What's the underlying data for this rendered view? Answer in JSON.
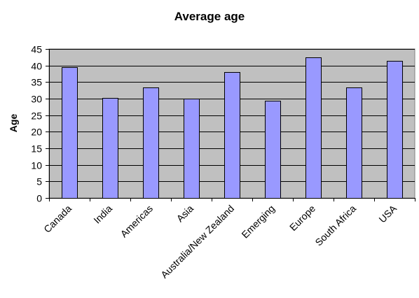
{
  "chart_data": {
    "type": "bar",
    "title": "Average age",
    "xlabel": "",
    "ylabel": "Age",
    "categories": [
      "Canada",
      "India",
      "Americas",
      "Asia",
      "Australia/New Zealand",
      "Emerging",
      "Europe",
      "South Africa",
      "USA"
    ],
    "values": [
      39.6,
      30.3,
      33.3,
      29.9,
      38.1,
      29.3,
      42.5,
      33.3,
      41.5
    ],
    "ylim": [
      0,
      45
    ],
    "yticks": [
      0,
      5,
      10,
      15,
      20,
      25,
      30,
      35,
      40,
      45
    ],
    "grid": true,
    "legend": "none",
    "colors": {
      "bar_fill": "#9999ff",
      "plot_background": "#c0c0c0",
      "gridline": "#000000"
    }
  }
}
